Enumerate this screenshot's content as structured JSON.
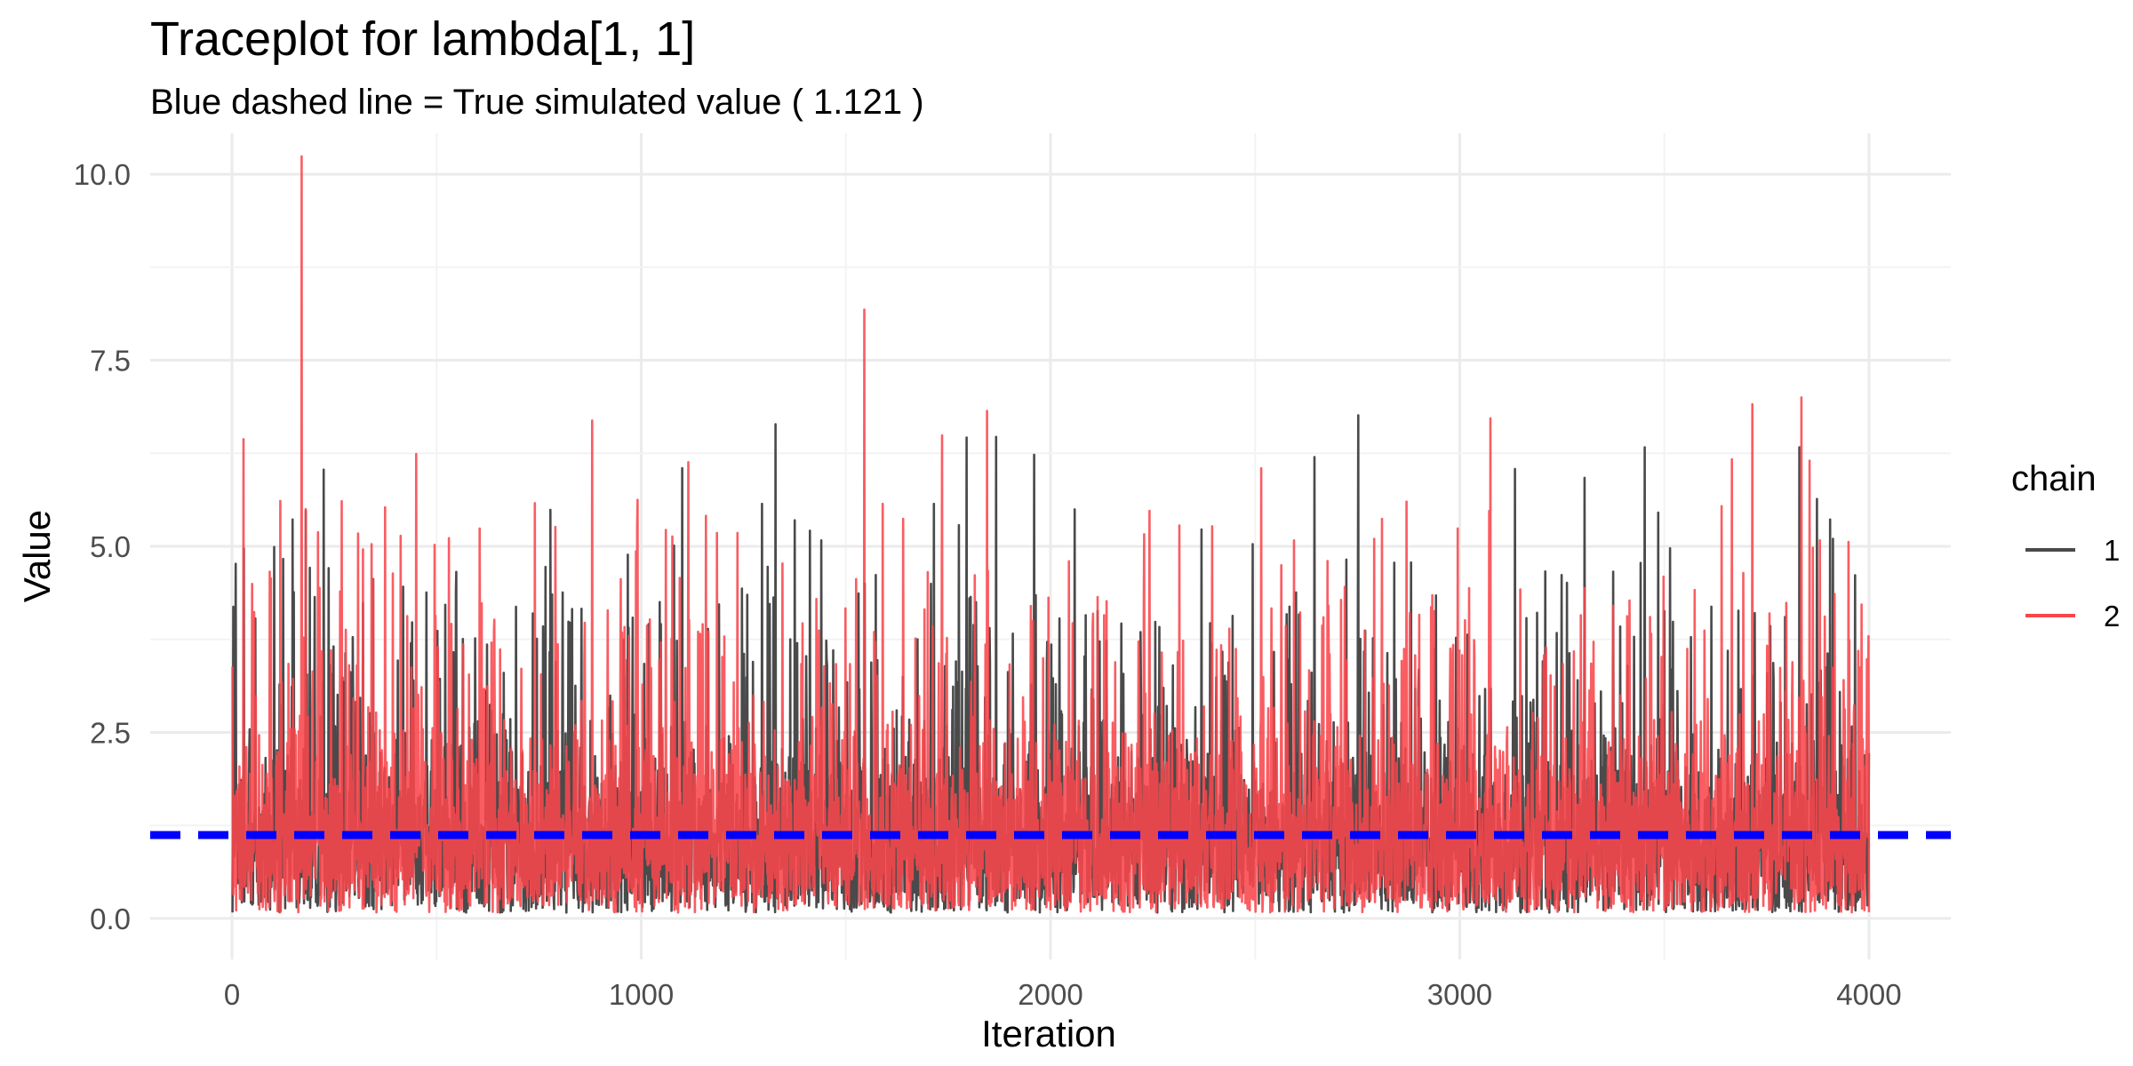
{
  "chart_data": {
    "type": "line",
    "title": "Traceplot for lambda[1, 1]",
    "subtitle": "Blue dashed line = True simulated value ( 1.121 )",
    "xlabel": "Iteration",
    "ylabel": "Value",
    "xlim": [
      -200,
      4200
    ],
    "ylim": [
      -0.55,
      10.55
    ],
    "xticks": [
      0,
      1000,
      2000,
      3000,
      4000
    ],
    "xtick_labels": [
      "0",
      "1000",
      "2000",
      "3000",
      "4000"
    ],
    "yticks": [
      0,
      2.5,
      5,
      7.5,
      10
    ],
    "ytick_labels": [
      "0.0",
      "2.5",
      "5.0",
      "7.5",
      "10.0"
    ],
    "grid": true,
    "legend_position": "right",
    "legend_title": "chain",
    "series": [
      {
        "name": "1",
        "color": "#4a4a4a",
        "n_iterations": 4000,
        "spikes": [
          [
            103,
            4.99
          ],
          [
            125,
            4.83
          ],
          [
            148,
            5.36
          ],
          [
            180,
            5.48
          ],
          [
            224,
            6.03
          ],
          [
            320,
            4.24
          ],
          [
            345,
            4.56
          ],
          [
            440,
            3.98
          ],
          [
            475,
            4.38
          ],
          [
            778,
            5.49
          ],
          [
            808,
            4.38
          ],
          [
            1045,
            4.25
          ],
          [
            1080,
            5.01
          ],
          [
            1100,
            6.05
          ],
          [
            1190,
            4.22
          ],
          [
            1295,
            5.57
          ],
          [
            1328,
            6.64
          ],
          [
            1375,
            5.35
          ],
          [
            1412,
            5.21
          ],
          [
            1440,
            5.08
          ],
          [
            1715,
            5.57
          ],
          [
            1802,
            4.3
          ],
          [
            1960,
            6.23
          ],
          [
            2600,
            4.38
          ],
          [
            2645,
            6.2
          ],
          [
            2752,
            6.76
          ],
          [
            2840,
            4.78
          ],
          [
            3135,
            6.04
          ],
          [
            3262,
            4.51
          ],
          [
            3305,
            5.92
          ],
          [
            3375,
            4.66
          ],
          [
            3452,
            6.33
          ],
          [
            3500,
            4.13
          ],
          [
            3795,
            4.05
          ],
          [
            3830,
            6.33
          ],
          [
            3905,
            5.36
          ]
        ]
      },
      {
        "name": "2",
        "color": "#f8474c",
        "n_iterations": 4000,
        "spikes": [
          [
            28,
            6.44
          ],
          [
            95,
            4.57
          ],
          [
            118,
            5.61
          ],
          [
            170,
            10.24
          ],
          [
            180,
            5.5
          ],
          [
            210,
            5.19
          ],
          [
            320,
            4.96
          ],
          [
            450,
            6.24
          ],
          [
            495,
            5.02
          ],
          [
            530,
            5.11
          ],
          [
            605,
            5.24
          ],
          [
            740,
            5.58
          ],
          [
            790,
            5.26
          ],
          [
            880,
            6.69
          ],
          [
            950,
            4.56
          ],
          [
            990,
            5.29
          ],
          [
            1060,
            5.22
          ],
          [
            1115,
            6.13
          ],
          [
            1185,
            5.18
          ],
          [
            1235,
            5.18
          ],
          [
            1345,
            4.77
          ],
          [
            1525,
            4.56
          ],
          [
            1545,
            8.18
          ],
          [
            1590,
            5.57
          ],
          [
            1640,
            5.37
          ],
          [
            1735,
            6.49
          ],
          [
            1845,
            6.82
          ],
          [
            1995,
            4.31
          ],
          [
            2045,
            4.8
          ],
          [
            2115,
            4.32
          ],
          [
            2215,
            3.72
          ],
          [
            2315,
            5.28
          ],
          [
            2395,
            5.27
          ],
          [
            2515,
            6.05
          ],
          [
            2595,
            5.08
          ],
          [
            2710,
            4.28
          ],
          [
            2810,
            5.37
          ],
          [
            2870,
            5.6
          ],
          [
            2995,
            5.24
          ],
          [
            3075,
            6.72
          ],
          [
            3148,
            4.42
          ],
          [
            3305,
            4.44
          ],
          [
            3465,
            4.05
          ],
          [
            3640,
            5.54
          ],
          [
            3665,
            6.17
          ],
          [
            3715,
            6.91
          ],
          [
            3835,
            7.0
          ],
          [
            3855,
            6.15
          ],
          [
            3880,
            5.08
          ],
          [
            3950,
            5.06
          ]
        ]
      }
    ],
    "reference_line": {
      "y": 1.121,
      "color": "#0000ff",
      "style": "dashed"
    }
  }
}
